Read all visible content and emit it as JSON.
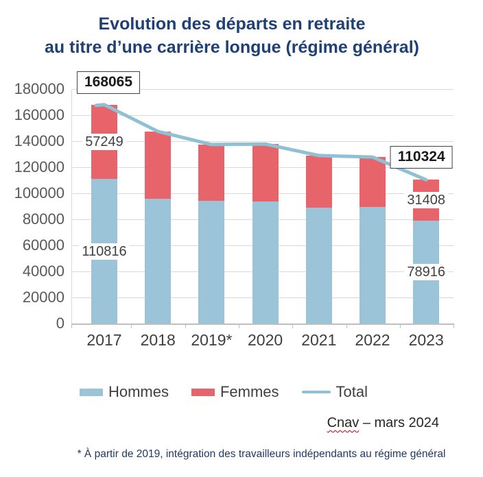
{
  "title": {
    "line1": "Evolution des départs en retraite",
    "line2": "au titre d’une carrière longue (régime général)"
  },
  "chart_data": {
    "type": "bar",
    "subtype": "stacked-bars-with-total-line",
    "categories": [
      "2017",
      "2018",
      "2019*",
      "2020",
      "2021",
      "2022",
      "2023"
    ],
    "series": [
      {
        "name": "Hommes",
        "color": "#9CC4D8",
        "values": [
          110816,
          96000,
          94200,
          93600,
          88900,
          89400,
          78916
        ]
      },
      {
        "name": "Femmes",
        "color": "#E8646B",
        "values": [
          57249,
          51500,
          43200,
          44200,
          40100,
          38400,
          31408
        ]
      }
    ],
    "line_series": {
      "name": "Total",
      "color": "#8FC0D4",
      "values": [
        168065,
        147500,
        137400,
        137800,
        129000,
        127800,
        110324
      ]
    },
    "ylim": [
      0,
      180000
    ],
    "ytick_step": 20000,
    "ytick_labels": [
      "0",
      "20000",
      "40000",
      "60000",
      "80000",
      "100000",
      "120000",
      "140000",
      "160000",
      "180000"
    ],
    "grid": true,
    "legend_position": "bottom",
    "callouts": [
      {
        "category": "2017",
        "text": "168065"
      },
      {
        "category": "2023",
        "text": "110324"
      }
    ],
    "segment_labels": [
      {
        "category": "2017",
        "series": "Femmes",
        "text": "57249"
      },
      {
        "category": "2017",
        "series": "Hommes",
        "text": "110816"
      },
      {
        "category": "2023",
        "series": "Femmes",
        "text": "31408"
      },
      {
        "category": "2023",
        "series": "Hommes",
        "text": "78916"
      }
    ]
  },
  "legend": {
    "items": [
      {
        "label": "Hommes",
        "type": "bar",
        "color": "#9CC4D8"
      },
      {
        "label": "Femmes",
        "type": "bar",
        "color": "#E8646B"
      },
      {
        "label": "Total",
        "type": "line",
        "color": "#8FC0D4"
      }
    ]
  },
  "source": {
    "name": "Cnav",
    "rest": " – mars 2024"
  },
  "footnote": "* À partir de 2019, intégration des travailleurs indépendants au régime général",
  "colors": {
    "title": "#1F4075",
    "footnote": "#203864",
    "grid": "#D9D9D9",
    "axis_line": "#BFBFBF",
    "y_tick_label": "#595959",
    "x_tick_label": "#3F3F3F",
    "data_label": "#404040",
    "callout_border": "#404040",
    "spellcheck_underline": "#C00000",
    "background": "#FFFFFF"
  }
}
